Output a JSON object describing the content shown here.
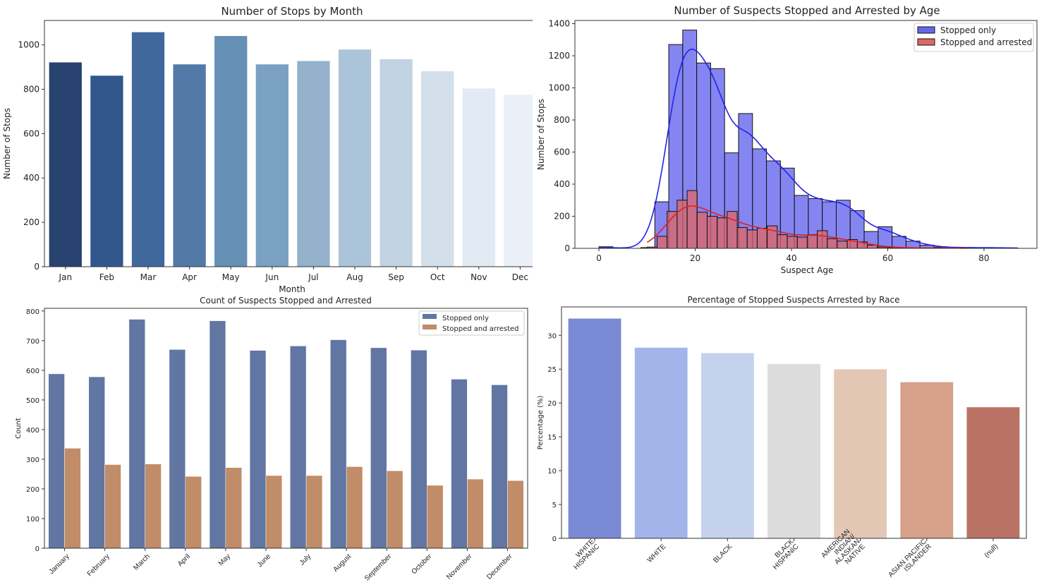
{
  "chart_data": [
    {
      "type": "bar",
      "title": "Number of Stops by Month",
      "xlabel": "Month",
      "ylabel": "Number of Stops",
      "ylim": [
        0,
        1110
      ],
      "yticks": [
        0,
        200,
        400,
        600,
        800,
        1000
      ],
      "categories": [
        "Jan",
        "Feb",
        "Mar",
        "Apr",
        "May",
        "Jun",
        "Jul",
        "Aug",
        "Sep",
        "Oct",
        "Nov",
        "Dec"
      ],
      "values": [
        922,
        862,
        1058,
        913,
        1041,
        913,
        928,
        980,
        936,
        882,
        804,
        777
      ],
      "colors": [
        "#27426f",
        "#31578d",
        "#41689c",
        "#5279a8",
        "#668fb6",
        "#7aa0c2",
        "#93b1cb",
        "#acc4d9",
        "#c1d2e2",
        "#d3dfeb",
        "#e2eaf3",
        "#ebf0f8"
      ],
      "grid": false
    },
    {
      "type": "histogram",
      "title": "Number of Suspects Stopped and Arrested by Age",
      "xlabel": "Suspect Age",
      "ylabel": "Number of Stops",
      "xlim": [
        -5,
        91
      ],
      "ylim": [
        0,
        1420
      ],
      "xticks": [
        0,
        20,
        40,
        60,
        80
      ],
      "yticks": [
        0,
        200,
        400,
        600,
        800,
        1000,
        1200,
        1400
      ],
      "legend_position": "top-right",
      "series": [
        {
          "name": "Stopped only",
          "color": "#6666ee",
          "line_color": "#2222ee",
          "bin_start": 0,
          "bin_width": 2.9,
          "counts": [
            10,
            0,
            0,
            5,
            290,
            1270,
            1360,
            1155,
            1120,
            595,
            840,
            620,
            545,
            500,
            330,
            310,
            290,
            300,
            235,
            105,
            135,
            75,
            45,
            20,
            8,
            5,
            5,
            4,
            4,
            3
          ]
        },
        {
          "name": "Stopped and arrested",
          "color": "#e06666",
          "line_color": "#dd2222",
          "bin_start": 10,
          "bin_width": 2.08,
          "counts": [
            8,
            75,
            230,
            300,
            360,
            225,
            200,
            190,
            230,
            130,
            115,
            125,
            140,
            85,
            75,
            70,
            85,
            110,
            60,
            45,
            55,
            40,
            20,
            8,
            5,
            4,
            3,
            3,
            2,
            2,
            2,
            1
          ]
        }
      ],
      "kde": true
    },
    {
      "type": "bar",
      "title": "Count of Suspects Stopped and Arrested",
      "xlabel": "",
      "ylabel": "Count",
      "ylim": [
        0,
        809
      ],
      "yticks": [
        0,
        100,
        200,
        300,
        400,
        500,
        600,
        700,
        800
      ],
      "categories": [
        "January",
        "February",
        "March",
        "April",
        "May",
        "June",
        "July",
        "August",
        "September",
        "October",
        "November",
        "December"
      ],
      "legend_position": "top-right",
      "series": [
        {
          "name": "Stopped only",
          "color": "#6176a2",
          "values": [
            588,
            578,
            772,
            670,
            767,
            667,
            682,
            703,
            676,
            668,
            570,
            551
          ]
        },
        {
          "name": "Stopped and arrested",
          "color": "#c18c68",
          "values": [
            337,
            282,
            284,
            242,
            272,
            245,
            245,
            275,
            261,
            212,
            233,
            228
          ]
        }
      ]
    },
    {
      "type": "bar",
      "title": "Percentage of Stopped Suspects Arrested by Race",
      "xlabel": "",
      "ylabel": "Percentage (%)",
      "ylim": [
        0,
        34.2
      ],
      "yticks": [
        0,
        5,
        10,
        15,
        20,
        25,
        30
      ],
      "categories": [
        "WHITE HISPANIC",
        "WHITE",
        "BLACK",
        "BLACK HISPANIC",
        "AMERICAN INDIAN/ALASKAN NATIVE",
        "ASIAN / PACIFIC ISLANDER",
        "(null)"
      ],
      "values": [
        32.5,
        28.2,
        27.4,
        25.8,
        25.0,
        23.1,
        19.4
      ],
      "colors": [
        "#7a89d3",
        "#a2b4ea",
        "#c5d2ee",
        "#dcdcdc",
        "#e3c7b5",
        "#d6a089",
        "#b97263"
      ]
    }
  ]
}
